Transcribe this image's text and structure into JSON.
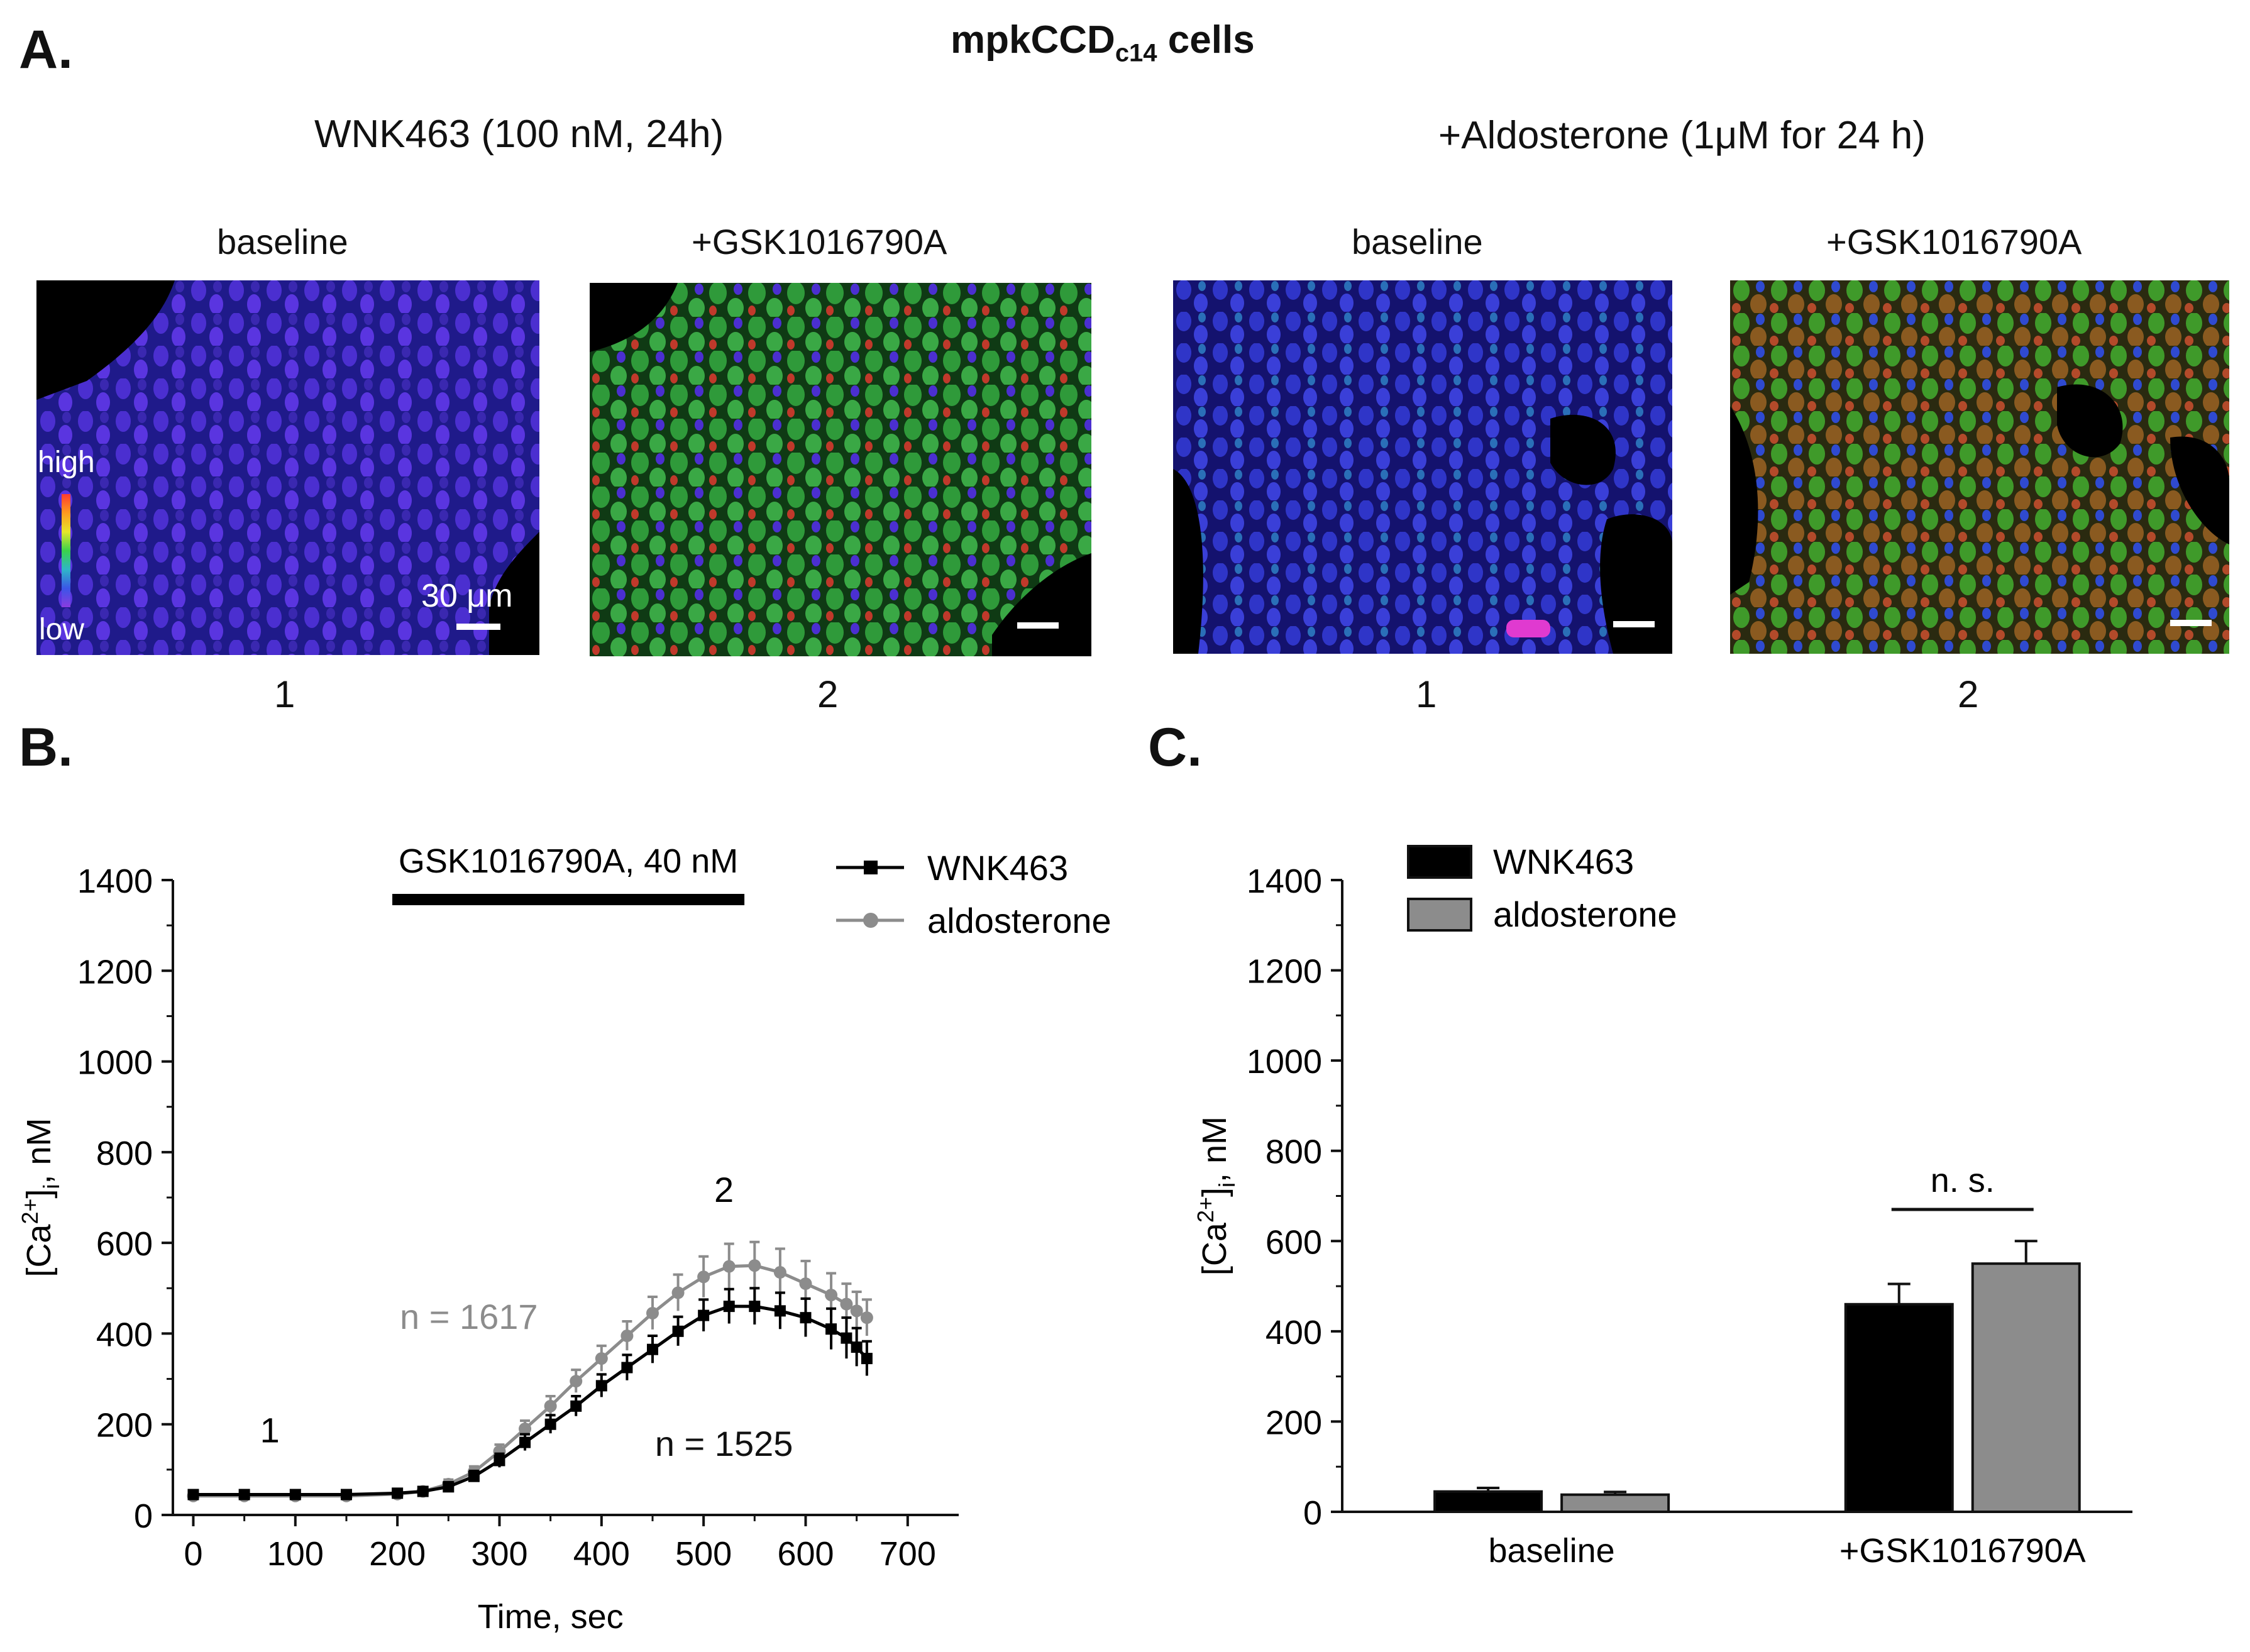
{
  "figure": {
    "title_main": "mpkCCD",
    "title_sub": "c14",
    "title_tail": " cells",
    "panel_a_letter": "A.",
    "panel_b_letter": "B.",
    "panel_c_letter": "C.",
    "condition_left": "WNK463 (100 nM, 24h)",
    "condition_right": "+Aldosterone (1μM for 24 h)",
    "image_labels": [
      "baseline",
      "+GSK1016790A",
      "baseline",
      "+GSK1016790A"
    ],
    "image_numbers": [
      "1",
      "2",
      "1",
      "2"
    ],
    "colorbar_high": "high",
    "colorbar_low": "low",
    "scale_bar_label": "30 μm"
  },
  "chart_data": [
    {
      "type": "line",
      "panel": "B",
      "xlabel": "Time, sec",
      "ylabel_parts": [
        "[Ca",
        "2+",
        "]",
        "i",
        ", nM"
      ],
      "xlim": [
        -20,
        750
      ],
      "ylim": [
        0,
        1400
      ],
      "xticks": [
        0,
        100,
        200,
        300,
        400,
        500,
        600,
        700
      ],
      "yticks": [
        0,
        200,
        400,
        600,
        800,
        1000,
        1200,
        1400
      ],
      "stimulus": {
        "label": "GSK1016790A, 40 nM",
        "start": 195,
        "end": 540
      },
      "annotations": [
        {
          "text": "1",
          "x": 75,
          "y": 160
        },
        {
          "text": "2",
          "x": 520,
          "y": 690
        }
      ],
      "series": [
        {
          "name": "WNK463",
          "color": "#000000",
          "marker": "square",
          "n_label": "n = 1525",
          "n_at": [
            520,
            130
          ],
          "x": [
            0,
            50,
            100,
            150,
            200,
            225,
            250,
            275,
            300,
            325,
            350,
            375,
            400,
            425,
            450,
            475,
            500,
            525,
            550,
            575,
            600,
            625,
            640,
            650,
            660
          ],
          "y": [
            45,
            45,
            45,
            45,
            48,
            52,
            62,
            85,
            120,
            160,
            200,
            240,
            285,
            325,
            365,
            405,
            440,
            460,
            460,
            450,
            435,
            410,
            390,
            370,
            345
          ],
          "err": [
            8,
            8,
            8,
            8,
            8,
            8,
            10,
            12,
            15,
            18,
            20,
            22,
            25,
            28,
            30,
            32,
            35,
            38,
            40,
            40,
            42,
            45,
            45,
            42,
            38
          ]
        },
        {
          "name": "aldosterone",
          "color": "#8c8c8c",
          "marker": "circle",
          "n_label": "n = 1617",
          "n_at": [
            270,
            410
          ],
          "x": [
            0,
            50,
            100,
            150,
            200,
            225,
            250,
            275,
            300,
            325,
            350,
            375,
            400,
            425,
            450,
            475,
            500,
            525,
            550,
            575,
            600,
            625,
            640,
            650,
            660
          ],
          "y": [
            42,
            42,
            42,
            42,
            46,
            52,
            68,
            95,
            140,
            190,
            240,
            295,
            345,
            395,
            445,
            490,
            525,
            548,
            550,
            535,
            510,
            485,
            465,
            450,
            435
          ],
          "err": [
            8,
            8,
            8,
            8,
            8,
            8,
            10,
            12,
            15,
            18,
            22,
            25,
            28,
            32,
            36,
            40,
            45,
            50,
            52,
            52,
            50,
            48,
            45,
            42,
            40
          ]
        }
      ]
    },
    {
      "type": "bar",
      "panel": "C",
      "ylabel_parts": [
        "[Ca",
        "2+",
        "]",
        "i",
        ", nM"
      ],
      "ylim": [
        0,
        1400
      ],
      "yticks": [
        0,
        200,
        400,
        600,
        800,
        1000,
        1200,
        1400
      ],
      "categories": [
        "baseline",
        "+GSK1016790A"
      ],
      "significance": "n. s.",
      "series": [
        {
          "name": "WNK463",
          "color": "#000000",
          "values": [
            45,
            460
          ],
          "errors": [
            8,
            45
          ]
        },
        {
          "name": "aldosterone",
          "color": "#8c8c8c",
          "values": [
            38,
            550
          ],
          "errors": [
            6,
            50
          ]
        }
      ]
    }
  ]
}
